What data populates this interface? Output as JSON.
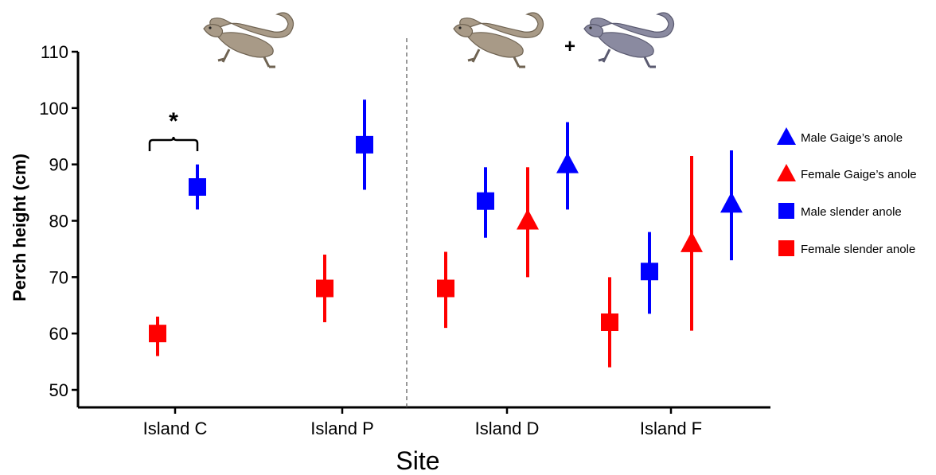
{
  "chart_data": {
    "type": "scatter",
    "xlabel": "Site",
    "ylabel": "Perch height (cm)",
    "ylim": [
      50,
      110
    ],
    "yticks": [
      50,
      60,
      70,
      80,
      90,
      100,
      110
    ],
    "categories": [
      "Island C",
      "Island P",
      "Island D",
      "Island F"
    ],
    "series": [
      {
        "name": "Male Gaige’s anole",
        "color": "#0000ff",
        "marker": "triangle",
        "points": [
          {
            "category": "Island D",
            "y": 90,
            "low": 82,
            "high": 97.5
          },
          {
            "category": "Island F",
            "y": 83,
            "low": 73,
            "high": 92.5
          }
        ]
      },
      {
        "name": "Female Gaige’s anole",
        "color": "#ff0000",
        "marker": "triangle",
        "points": [
          {
            "category": "Island D",
            "y": 80,
            "low": 70,
            "high": 89.5
          },
          {
            "category": "Island F",
            "y": 76,
            "low": 60.5,
            "high": 91.5
          }
        ]
      },
      {
        "name": "Male slender anole",
        "color": "#0000ff",
        "marker": "square",
        "points": [
          {
            "category": "Island C",
            "y": 86,
            "low": 82,
            "high": 90
          },
          {
            "category": "Island P",
            "y": 93.5,
            "low": 85.5,
            "high": 101.5
          },
          {
            "category": "Island D",
            "y": 83.5,
            "low": 77,
            "high": 89.5
          },
          {
            "category": "Island F",
            "y": 71,
            "low": 63.5,
            "high": 78
          }
        ]
      },
      {
        "name": "Female slender anole",
        "color": "#ff0000",
        "marker": "square",
        "points": [
          {
            "category": "Island C",
            "y": 60,
            "low": 56,
            "high": 63
          },
          {
            "category": "Island P",
            "y": 68,
            "low": 62,
            "high": 74
          },
          {
            "category": "Island D",
            "y": 68,
            "low": 61,
            "high": 74.5
          },
          {
            "category": "Island F",
            "y": 62,
            "low": 54,
            "high": 70
          }
        ]
      }
    ],
    "annotations": [
      {
        "text": "*",
        "category": "Island C",
        "type": "bracket"
      },
      {
        "text": "+",
        "type": "between-lizards"
      }
    ],
    "legend_position": "right",
    "divider": "dashed line between Island P and Island D",
    "lizard_colors": {
      "brown": "#a89a87",
      "grey_blue": "#8a8aa0"
    }
  }
}
